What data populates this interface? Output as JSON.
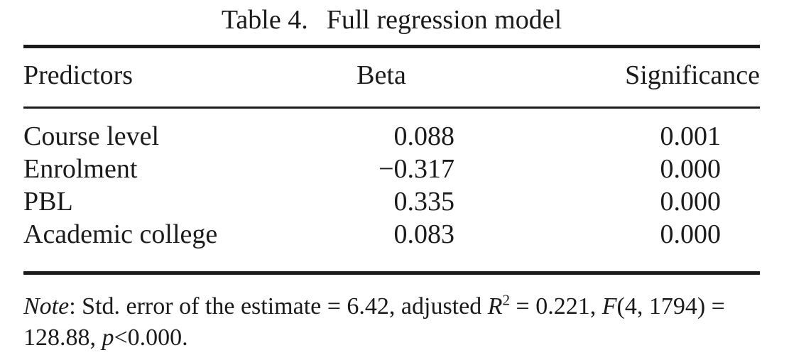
{
  "title": {
    "label": "Table 4.",
    "text": "Full regression model"
  },
  "table": {
    "columns": [
      "Predictors",
      "Beta",
      "Significance"
    ],
    "rows": [
      {
        "predictor": "Course level",
        "beta": "0.088",
        "significance": "0.001"
      },
      {
        "predictor": "Enrolment",
        "beta": "−0.317",
        "significance": "0.000"
      },
      {
        "predictor": "PBL",
        "beta": "0.335",
        "significance": "0.000"
      },
      {
        "predictor": "Academic college",
        "beta": "0.083",
        "significance": "0.000"
      }
    ]
  },
  "note": {
    "line1": [
      {
        "text": "Note",
        "style": "italic"
      },
      {
        "text": ": Std. error of the estimate = 6.42, adjusted ",
        "style": "normal"
      },
      {
        "text": "R",
        "style": "italic"
      },
      {
        "text": "2",
        "style": "superscript"
      },
      {
        "text": " = 0.221, ",
        "style": "normal"
      },
      {
        "text": "F",
        "style": "italic"
      },
      {
        "text": "(4, 1794) =",
        "style": "normal"
      }
    ],
    "line2": [
      {
        "text": "128.88, ",
        "style": "normal"
      },
      {
        "text": "p",
        "style": "italic"
      },
      {
        "text": "<0.000.",
        "style": "normal"
      }
    ]
  },
  "colors": {
    "text": "#1b1b1b",
    "rule": "#1b1b1b",
    "background": "#ffffff"
  },
  "chart_data": {
    "type": "table",
    "title": "Table 4. Full regression model",
    "columns": [
      "Predictors",
      "Beta",
      "Significance"
    ],
    "rows": [
      [
        "Course level",
        0.088,
        0.001
      ],
      [
        "Enrolment",
        -0.317,
        0.0
      ],
      [
        "PBL",
        0.335,
        0.0
      ],
      [
        "Academic college",
        0.083,
        0.0
      ]
    ],
    "note": "Note: Std. error of the estimate = 6.42, adjusted R2 = 0.221, F(4, 1794) = 128.88, p<0.000."
  }
}
